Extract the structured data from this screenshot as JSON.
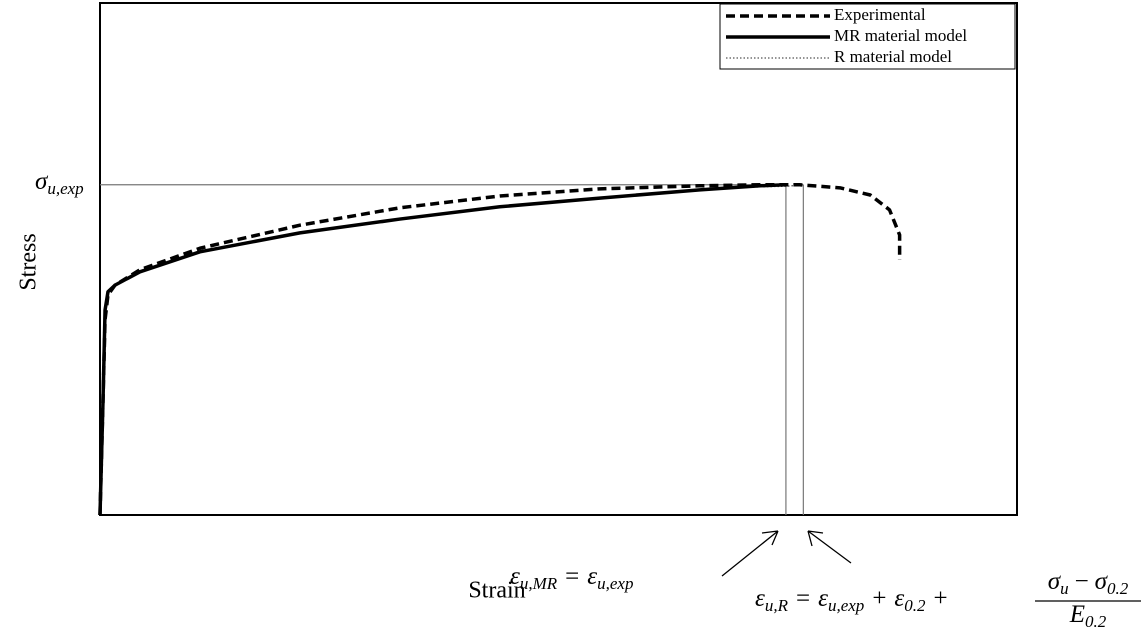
{
  "chart_data": {
    "type": "line",
    "x_label": "Strain",
    "y_label": "Stress",
    "xlim": [
      0,
      100
    ],
    "ylim": [
      0,
      100
    ],
    "legend": "upper right",
    "series": [
      {
        "name": "Experimental",
        "color": "#000000",
        "style": "dashed",
        "x": [
          0,
          0.33,
          0.55,
          0.87,
          1.64,
          4.36,
          10.9,
          21.8,
          32.7,
          43.6,
          54.5,
          65.4,
          72.0,
          76.3,
          80.7,
          84.0,
          86.1,
          87.2,
          87.2
        ],
        "values": [
          0,
          22.5,
          38.1,
          43.0,
          44.9,
          47.9,
          52.1,
          56.6,
          60.0,
          62.3,
          63.7,
          64.3,
          64.5,
          64.5,
          63.9,
          62.5,
          59.6,
          54.7,
          49.8
        ]
      },
      {
        "name": "MR material model",
        "color": "#000000",
        "style": "solid",
        "x": [
          0,
          0.33,
          0.55,
          0.87,
          1.64,
          4.36,
          10.9,
          21.8,
          32.7,
          43.6,
          54.5,
          65.4,
          72.0,
          74.8
        ],
        "values": [
          0,
          22.5,
          40.0,
          43.6,
          44.9,
          47.5,
          51.4,
          55.1,
          57.8,
          60.2,
          61.9,
          63.5,
          64.3,
          64.5
        ]
      },
      {
        "name": "R material model",
        "color": "#555555",
        "style": "dotted",
        "x": [
          0,
          0.33,
          0.55,
          0.87,
          1.64,
          4.36,
          10.9,
          21.8,
          32.7,
          43.6,
          54.5,
          65.4,
          72.0,
          74.8,
          76.7
        ],
        "values": [
          0,
          22.5,
          40.0,
          43.6,
          44.9,
          47.5,
          51.4,
          55.1,
          57.8,
          60.2,
          61.9,
          63.5,
          64.1,
          64.2,
          64.5
        ]
      }
    ],
    "reference_lines": {
      "sigma_u_exp": 64.5,
      "eps_u_MR": 74.8,
      "eps_u_R": 76.7
    },
    "annotations": {
      "sigma": {
        "base": "σ",
        "sub": "u,exp"
      },
      "eps_mr": {
        "lhs_base": "ε",
        "lhs_sub": "u,MR",
        "eq": "=",
        "rhs_base": "ε",
        "rhs_sub": "u,exp"
      },
      "eps_r": {
        "lhs_base": "ε",
        "lhs_sub": "u,R",
        "eq": "=",
        "t1_base": "ε",
        "t1_sub": "u,exp",
        "plus": "+",
        "t2_base": "ε",
        "t2_sub": "0.2",
        "num_a_base": "σ",
        "num_a_sub": "u",
        "minus": "−",
        "num_b_base": "σ",
        "num_b_sub": "0.2",
        "den_base": "E",
        "den_sub": "0.2"
      }
    }
  }
}
